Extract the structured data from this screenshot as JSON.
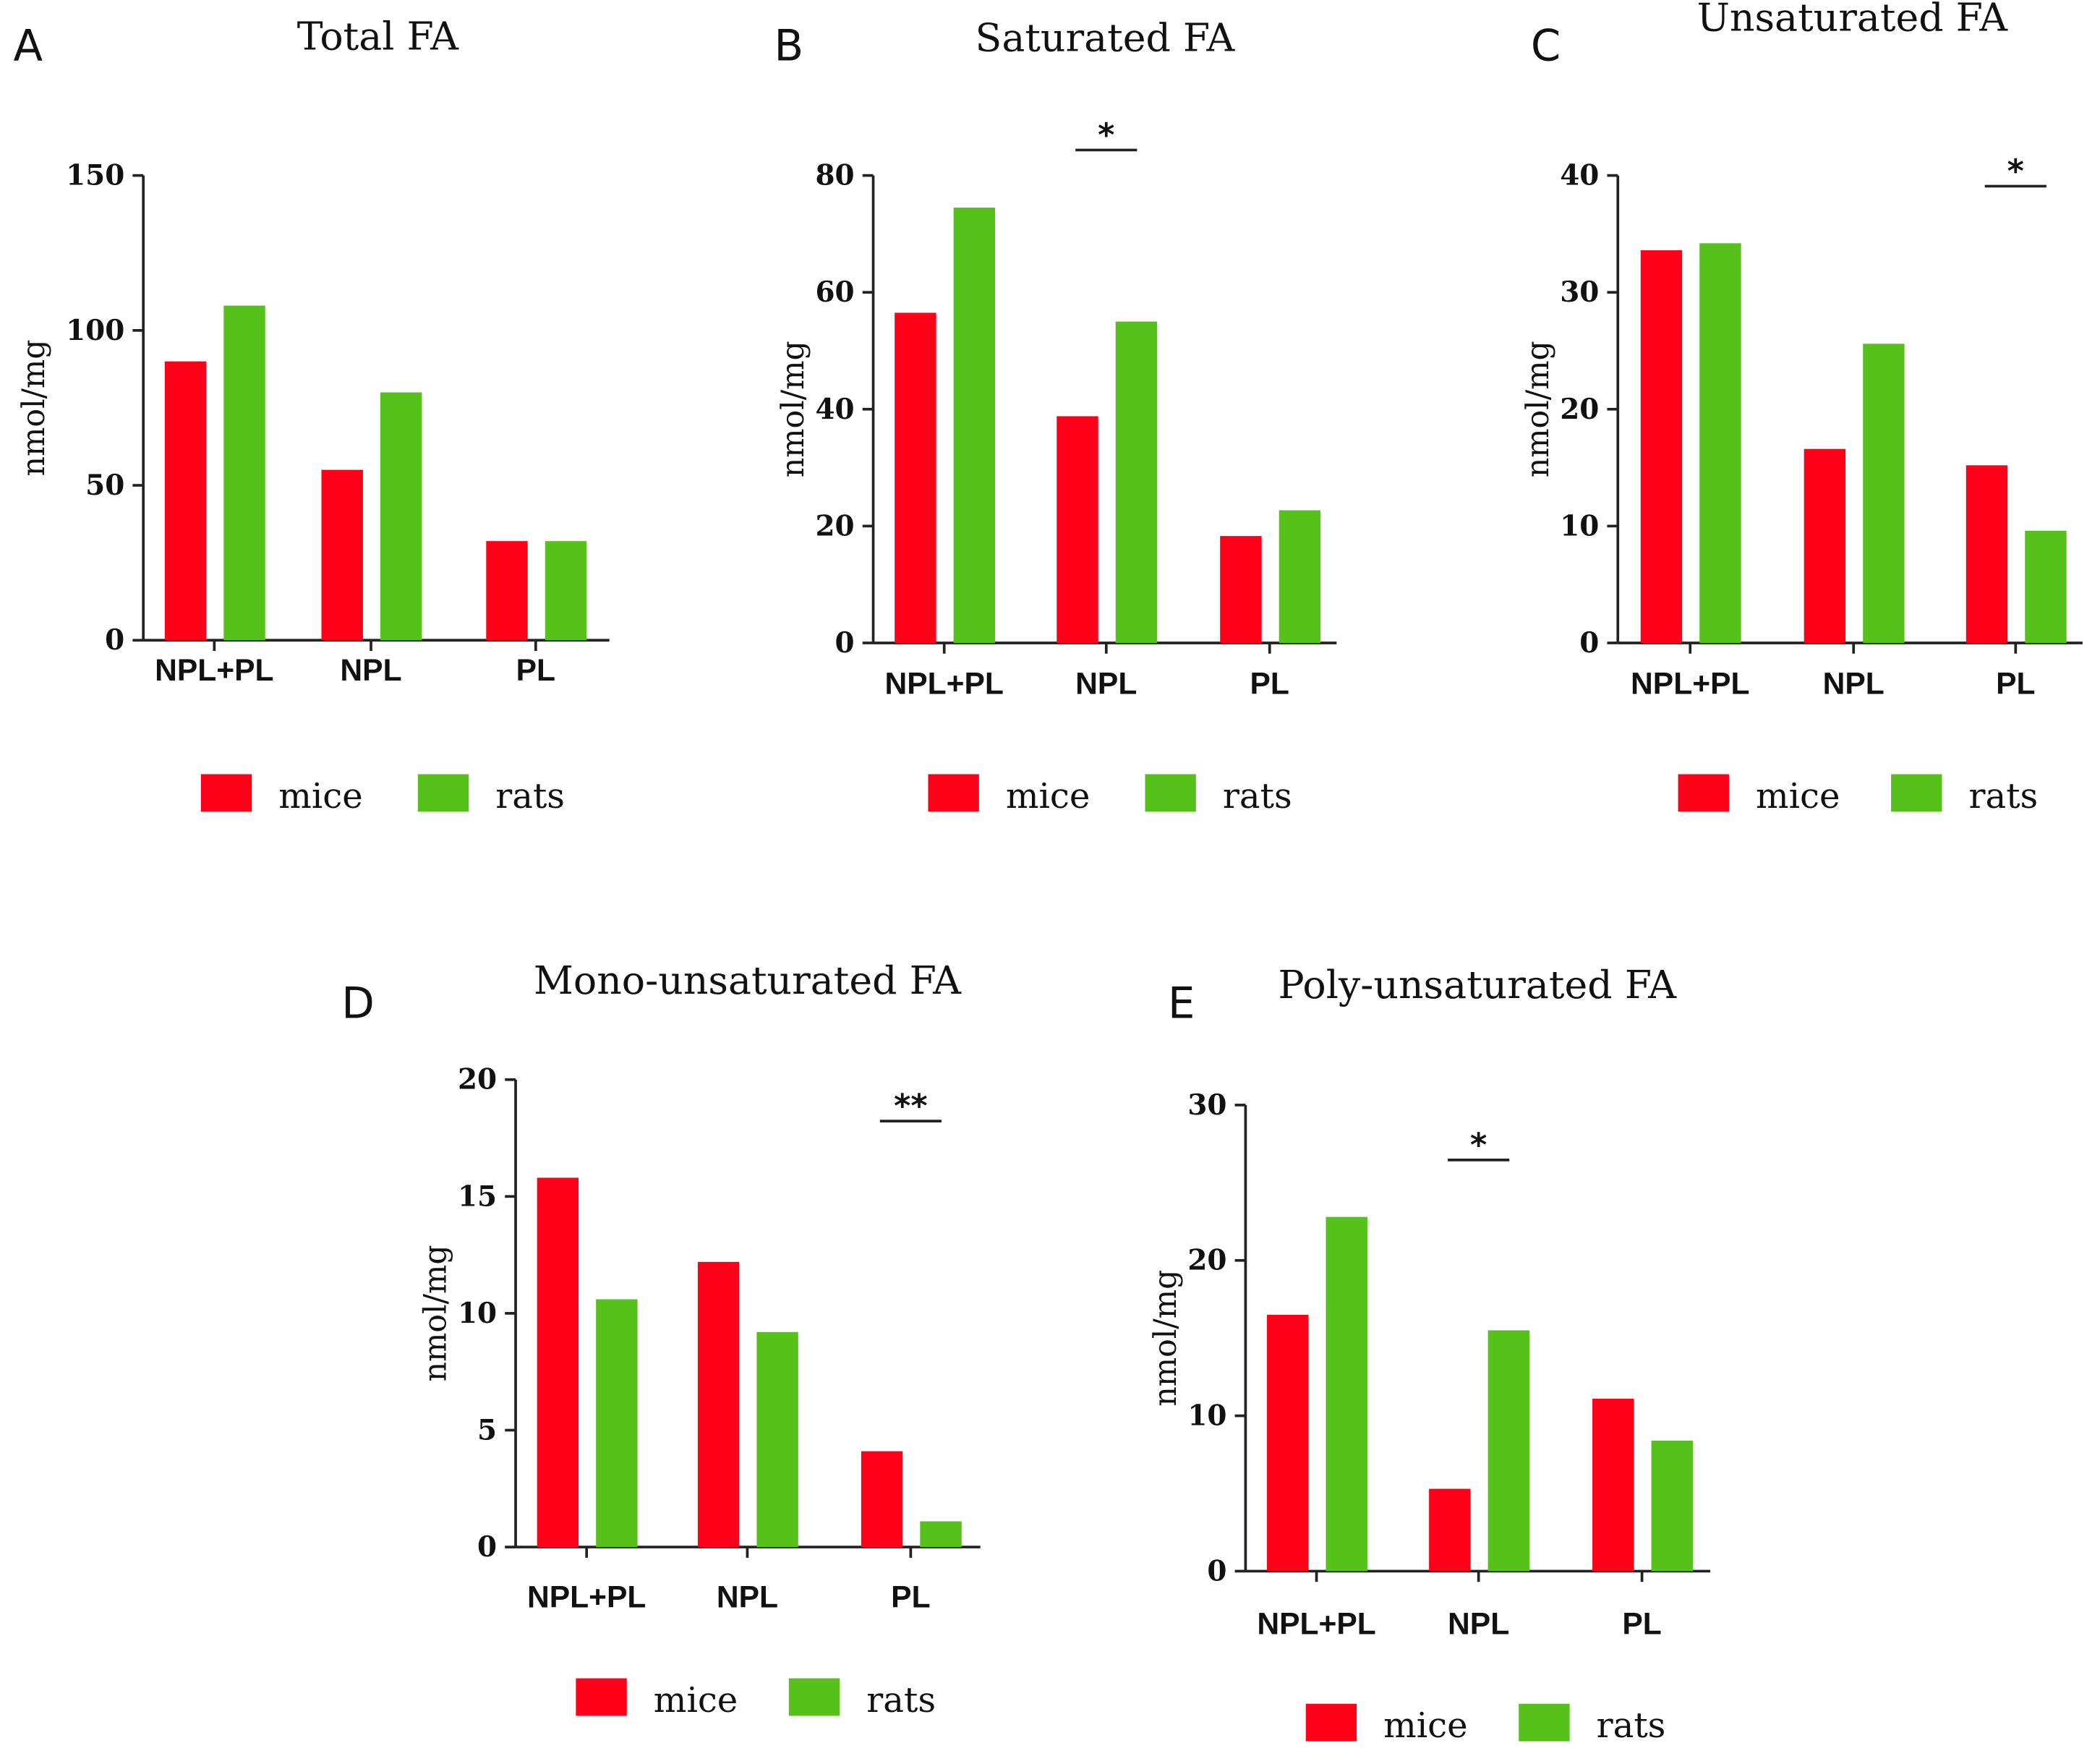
{
  "chart_data": [
    {
      "type": "bar",
      "panel": "A",
      "title": "Total FA",
      "ylabel": "nmol/mg",
      "ylim": [
        0,
        150
      ],
      "yticks": [
        "0",
        "50",
        "100",
        "150"
      ],
      "categories": [
        "NPL+PL",
        "NPL",
        "PL"
      ],
      "series": [
        {
          "name": "mice",
          "color": "#ff0019",
          "values": [
            90,
            55,
            32
          ]
        },
        {
          "name": "rats",
          "color": "#57c11c",
          "values": [
            108,
            80,
            32
          ]
        }
      ],
      "significance": []
    },
    {
      "type": "bar",
      "panel": "B",
      "title": "Saturated FA",
      "ylabel": "nmol/mg",
      "ylim": [
        0,
        80
      ],
      "yticks": [
        "0",
        "20",
        "40",
        "60",
        "80"
      ],
      "categories": [
        "NPL+PL",
        "NPL",
        "PL"
      ],
      "series": [
        {
          "name": "mice",
          "color": "#ff0019",
          "values": [
            56.5,
            38.8,
            18.3
          ]
        },
        {
          "name": "rats",
          "color": "#57c11c",
          "values": [
            74.5,
            55,
            22.7
          ]
        }
      ],
      "significance": [
        {
          "category": "NPL",
          "label": "*"
        }
      ]
    },
    {
      "type": "bar",
      "panel": "C",
      "title": "Unsaturated FA",
      "ylabel": "nmol/mg",
      "ylim": [
        0,
        40
      ],
      "yticks": [
        "0",
        "10",
        "20",
        "30",
        "40"
      ],
      "categories": [
        "NPL+PL",
        "NPL",
        "PL"
      ],
      "series": [
        {
          "name": "mice",
          "color": "#ff0019",
          "values": [
            33.6,
            16.6,
            15.2
          ]
        },
        {
          "name": "rats",
          "color": "#57c11c",
          "values": [
            34.2,
            25.6,
            9.6
          ]
        }
      ],
      "significance": [
        {
          "category": "PL",
          "label": "*"
        }
      ]
    },
    {
      "type": "bar",
      "panel": "D",
      "title": "Mono-unsaturated FA",
      "ylabel": "nmol/mg",
      "ylim": [
        0,
        20
      ],
      "yticks": [
        "0",
        "5",
        "10",
        "15",
        "20"
      ],
      "categories": [
        "NPL+PL",
        "NPL",
        "PL"
      ],
      "series": [
        {
          "name": "mice",
          "color": "#ff0019",
          "values": [
            15.8,
            12.2,
            4.1
          ]
        },
        {
          "name": "rats",
          "color": "#57c11c",
          "values": [
            10.6,
            9.2,
            1.1
          ]
        }
      ],
      "significance": [
        {
          "category": "PL",
          "label": "**"
        }
      ]
    },
    {
      "type": "bar",
      "panel": "E",
      "title": "Poly-unsaturated FA",
      "ylabel": "nmol/mg",
      "ylim": [
        0,
        30
      ],
      "yticks": [
        "0",
        "10",
        "20",
        "30"
      ],
      "categories": [
        "NPL+PL",
        "NPL",
        "PL"
      ],
      "series": [
        {
          "name": "mice",
          "color": "#ff0019",
          "values": [
            16.5,
            5.3,
            11.1
          ]
        },
        {
          "name": "rats",
          "color": "#57c11c",
          "values": [
            22.8,
            15.5,
            8.4
          ]
        }
      ],
      "significance": [
        {
          "category": "NPL",
          "label": "*"
        }
      ]
    }
  ]
}
